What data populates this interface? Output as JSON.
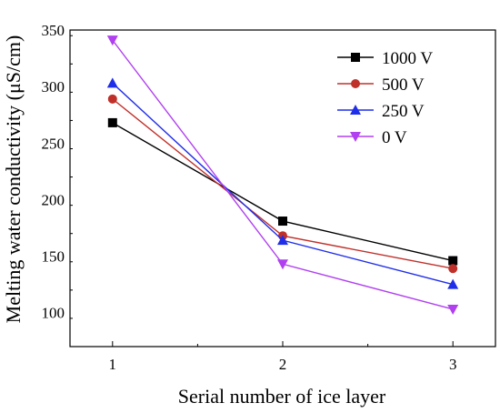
{
  "chart_data": {
    "type": "line",
    "xlabel": "Serial number of ice layer",
    "ylabel": "Melting water conductivity (μS/cm)",
    "x": [
      1,
      2,
      3
    ],
    "xticks": [
      "1",
      "2",
      "3"
    ],
    "xlim": [
      0.75,
      3.25
    ],
    "ylim": [
      70,
      350
    ],
    "yticks": [
      100,
      150,
      200,
      250,
      300,
      350
    ],
    "grid": false,
    "legend_position": "top-right",
    "series": [
      {
        "name": "1000 V",
        "values": [
          268,
          181,
          146
        ],
        "color": "#000000",
        "marker": "square"
      },
      {
        "name": "500 V",
        "values": [
          289,
          168,
          139
        ],
        "color": "#c0302a",
        "marker": "circle"
      },
      {
        "name": "250 V",
        "values": [
          303,
          164,
          125
        ],
        "color": "#1f2ee8",
        "marker": "triangle-up"
      },
      {
        "name": "0 V",
        "values": [
          341,
          143,
          103
        ],
        "color": "#b040f0",
        "marker": "triangle-down"
      }
    ]
  }
}
